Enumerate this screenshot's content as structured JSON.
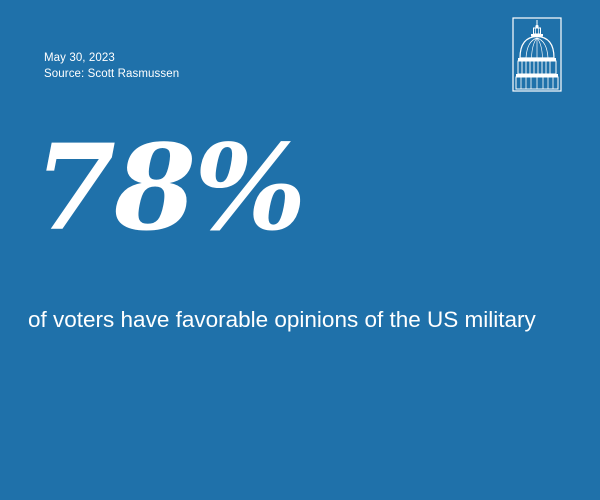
{
  "meta": {
    "date": "May 30, 2023",
    "source": "Source: Scott Rasmussen"
  },
  "stat": {
    "value": "78%",
    "caption": "of voters have favorable opinions of the US military"
  },
  "logo": {
    "icon": "capitol-dome-icon"
  },
  "colors": {
    "background": "#1f71aa",
    "text": "#ffffff"
  }
}
